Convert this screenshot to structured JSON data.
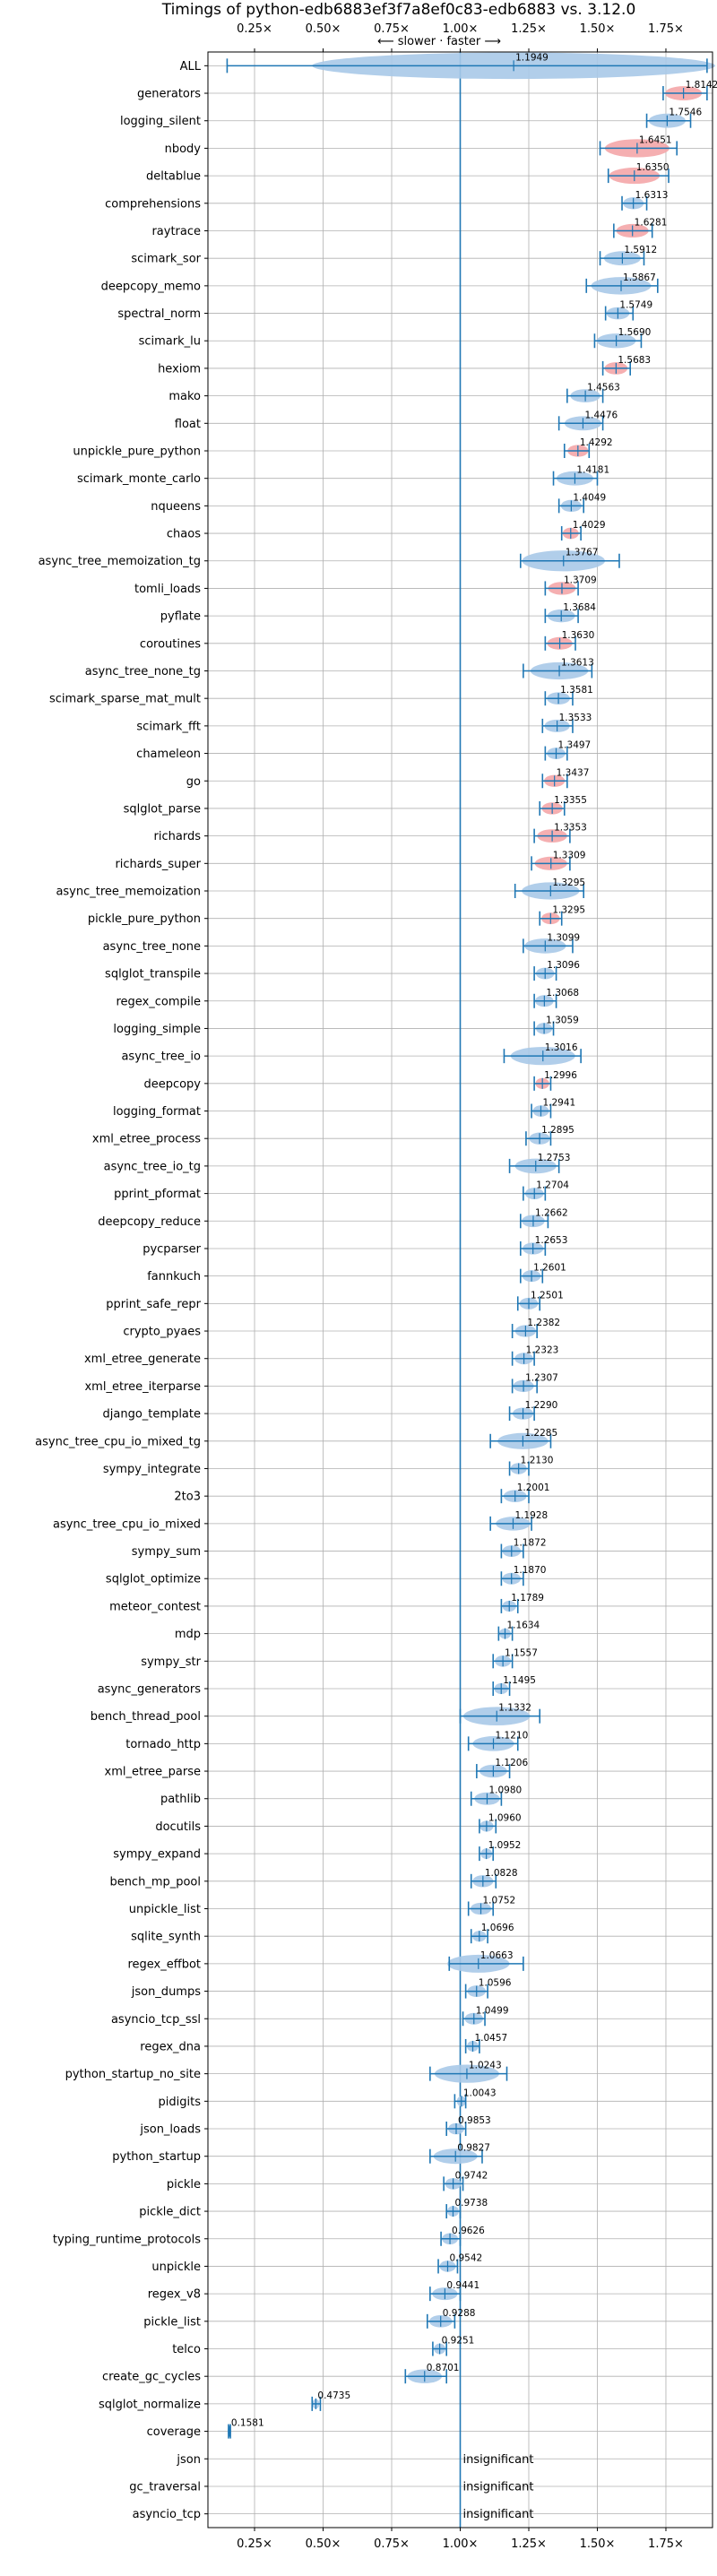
{
  "chart_data": {
    "type": "violin",
    "title": "Timings of python-edb6883ef3f7a8ef0c83-edb6883 vs. 3.12.0",
    "subtitle": "⟵ slower · faster ⟶",
    "xlim": [
      0.08,
      1.92
    ],
    "x_ticks": [
      0.25,
      0.5,
      0.75,
      1.0,
      1.25,
      1.5,
      1.75
    ],
    "x_tick_labels": [
      "0.25×",
      "0.50×",
      "0.75×",
      "1.00×",
      "1.25×",
      "1.50×",
      "1.75×"
    ],
    "reference_line": 1.0,
    "grid": true,
    "insignificant_label": "insignificant",
    "colors": {
      "faster": "#a9c9e8",
      "slower": "#f4a6a8",
      "whisker": "#1f77b4",
      "grid": "#b0b0b0"
    },
    "benchmarks": [
      {
        "name": "ALL",
        "value": 1.1949,
        "lo": 0.15,
        "hi": 1.9,
        "slower": false
      },
      {
        "name": "generators",
        "value": 1.8142,
        "lo": 1.74,
        "hi": 1.9,
        "slower": true
      },
      {
        "name": "logging_silent",
        "value": 1.7546,
        "lo": 1.68,
        "hi": 1.84,
        "slower": false
      },
      {
        "name": "nbody",
        "value": 1.6451,
        "lo": 1.51,
        "hi": 1.79,
        "slower": true
      },
      {
        "name": "deltablue",
        "value": 1.635,
        "lo": 1.54,
        "hi": 1.76,
        "slower": true
      },
      {
        "name": "comprehensions",
        "value": 1.6313,
        "lo": 1.59,
        "hi": 1.68,
        "slower": false
      },
      {
        "name": "raytrace",
        "value": 1.6281,
        "lo": 1.56,
        "hi": 1.7,
        "slower": true
      },
      {
        "name": "scimark_sor",
        "value": 1.5912,
        "lo": 1.51,
        "hi": 1.67,
        "slower": false
      },
      {
        "name": "deepcopy_memo",
        "value": 1.5867,
        "lo": 1.46,
        "hi": 1.72,
        "slower": false
      },
      {
        "name": "spectral_norm",
        "value": 1.5749,
        "lo": 1.53,
        "hi": 1.63,
        "slower": false
      },
      {
        "name": "scimark_lu",
        "value": 1.569,
        "lo": 1.49,
        "hi": 1.66,
        "slower": false
      },
      {
        "name": "hexiom",
        "value": 1.5683,
        "lo": 1.52,
        "hi": 1.62,
        "slower": true
      },
      {
        "name": "mako",
        "value": 1.4563,
        "lo": 1.39,
        "hi": 1.52,
        "slower": false
      },
      {
        "name": "float",
        "value": 1.4476,
        "lo": 1.36,
        "hi": 1.52,
        "slower": false
      },
      {
        "name": "unpickle_pure_python",
        "value": 1.4292,
        "lo": 1.38,
        "hi": 1.47,
        "slower": true
      },
      {
        "name": "scimark_monte_carlo",
        "value": 1.4181,
        "lo": 1.34,
        "hi": 1.5,
        "slower": false
      },
      {
        "name": "nqueens",
        "value": 1.4049,
        "lo": 1.36,
        "hi": 1.45,
        "slower": false
      },
      {
        "name": "chaos",
        "value": 1.4029,
        "lo": 1.37,
        "hi": 1.44,
        "slower": true
      },
      {
        "name": "async_tree_memoization_tg",
        "value": 1.3767,
        "lo": 1.22,
        "hi": 1.58,
        "slower": false
      },
      {
        "name": "tomli_loads",
        "value": 1.3709,
        "lo": 1.31,
        "hi": 1.43,
        "slower": true
      },
      {
        "name": "pyflate",
        "value": 1.3684,
        "lo": 1.31,
        "hi": 1.43,
        "slower": false
      },
      {
        "name": "coroutines",
        "value": 1.363,
        "lo": 1.31,
        "hi": 1.42,
        "slower": true
      },
      {
        "name": "async_tree_none_tg",
        "value": 1.3613,
        "lo": 1.23,
        "hi": 1.48,
        "slower": false
      },
      {
        "name": "scimark_sparse_mat_mult",
        "value": 1.3581,
        "lo": 1.31,
        "hi": 1.41,
        "slower": false
      },
      {
        "name": "scimark_fft",
        "value": 1.3533,
        "lo": 1.3,
        "hi": 1.41,
        "slower": false
      },
      {
        "name": "chameleon",
        "value": 1.3497,
        "lo": 1.31,
        "hi": 1.39,
        "slower": false
      },
      {
        "name": "go",
        "value": 1.3437,
        "lo": 1.3,
        "hi": 1.39,
        "slower": true
      },
      {
        "name": "sqlglot_parse",
        "value": 1.3355,
        "lo": 1.29,
        "hi": 1.38,
        "slower": true
      },
      {
        "name": "richards",
        "value": 1.3353,
        "lo": 1.27,
        "hi": 1.4,
        "slower": true
      },
      {
        "name": "richards_super",
        "value": 1.3309,
        "lo": 1.26,
        "hi": 1.4,
        "slower": true
      },
      {
        "name": "async_tree_memoization",
        "value": 1.3295,
        "lo": 1.2,
        "hi": 1.45,
        "slower": false
      },
      {
        "name": "pickle_pure_python",
        "value": 1.3295,
        "lo": 1.29,
        "hi": 1.37,
        "slower": true
      },
      {
        "name": "async_tree_none",
        "value": 1.3099,
        "lo": 1.23,
        "hi": 1.41,
        "slower": false
      },
      {
        "name": "sqlglot_transpile",
        "value": 1.3096,
        "lo": 1.27,
        "hi": 1.35,
        "slower": false
      },
      {
        "name": "regex_compile",
        "value": 1.3068,
        "lo": 1.27,
        "hi": 1.35,
        "slower": false
      },
      {
        "name": "logging_simple",
        "value": 1.3059,
        "lo": 1.27,
        "hi": 1.34,
        "slower": false
      },
      {
        "name": "async_tree_io",
        "value": 1.3016,
        "lo": 1.16,
        "hi": 1.44,
        "slower": false
      },
      {
        "name": "deepcopy",
        "value": 1.2996,
        "lo": 1.27,
        "hi": 1.33,
        "slower": true
      },
      {
        "name": "logging_format",
        "value": 1.2941,
        "lo": 1.26,
        "hi": 1.33,
        "slower": false
      },
      {
        "name": "xml_etree_process",
        "value": 1.2895,
        "lo": 1.24,
        "hi": 1.33,
        "slower": false
      },
      {
        "name": "async_tree_io_tg",
        "value": 1.2753,
        "lo": 1.18,
        "hi": 1.36,
        "slower": false
      },
      {
        "name": "pprint_pformat",
        "value": 1.2704,
        "lo": 1.23,
        "hi": 1.31,
        "slower": false
      },
      {
        "name": "deepcopy_reduce",
        "value": 1.2662,
        "lo": 1.22,
        "hi": 1.32,
        "slower": false
      },
      {
        "name": "pycparser",
        "value": 1.2653,
        "lo": 1.22,
        "hi": 1.31,
        "slower": false
      },
      {
        "name": "fannkuch",
        "value": 1.2601,
        "lo": 1.22,
        "hi": 1.3,
        "slower": false
      },
      {
        "name": "pprint_safe_repr",
        "value": 1.2501,
        "lo": 1.21,
        "hi": 1.29,
        "slower": false
      },
      {
        "name": "crypto_pyaes",
        "value": 1.2382,
        "lo": 1.19,
        "hi": 1.28,
        "slower": false
      },
      {
        "name": "xml_etree_generate",
        "value": 1.2323,
        "lo": 1.19,
        "hi": 1.27,
        "slower": false
      },
      {
        "name": "xml_etree_iterparse",
        "value": 1.2307,
        "lo": 1.19,
        "hi": 1.28,
        "slower": false
      },
      {
        "name": "django_template",
        "value": 1.229,
        "lo": 1.18,
        "hi": 1.27,
        "slower": false
      },
      {
        "name": "async_tree_cpu_io_mixed_tg",
        "value": 1.2285,
        "lo": 1.11,
        "hi": 1.33,
        "slower": false
      },
      {
        "name": "sympy_integrate",
        "value": 1.213,
        "lo": 1.18,
        "hi": 1.25,
        "slower": false
      },
      {
        "name": "2to3",
        "value": 1.2001,
        "lo": 1.15,
        "hi": 1.25,
        "slower": false
      },
      {
        "name": "async_tree_cpu_io_mixed",
        "value": 1.1928,
        "lo": 1.11,
        "hi": 1.26,
        "slower": false
      },
      {
        "name": "sympy_sum",
        "value": 1.1872,
        "lo": 1.15,
        "hi": 1.23,
        "slower": false
      },
      {
        "name": "sqlglot_optimize",
        "value": 1.187,
        "lo": 1.15,
        "hi": 1.23,
        "slower": false
      },
      {
        "name": "meteor_contest",
        "value": 1.1789,
        "lo": 1.15,
        "hi": 1.21,
        "slower": false
      },
      {
        "name": "mdp",
        "value": 1.1634,
        "lo": 1.14,
        "hi": 1.19,
        "slower": false
      },
      {
        "name": "sympy_str",
        "value": 1.1557,
        "lo": 1.12,
        "hi": 1.19,
        "slower": false
      },
      {
        "name": "async_generators",
        "value": 1.1495,
        "lo": 1.12,
        "hi": 1.18,
        "slower": false
      },
      {
        "name": "bench_thread_pool",
        "value": 1.1332,
        "lo": 1.0,
        "hi": 1.29,
        "slower": false
      },
      {
        "name": "tornado_http",
        "value": 1.121,
        "lo": 1.03,
        "hi": 1.21,
        "slower": false
      },
      {
        "name": "xml_etree_parse",
        "value": 1.1206,
        "lo": 1.06,
        "hi": 1.18,
        "slower": false
      },
      {
        "name": "pathlib",
        "value": 1.098,
        "lo": 1.04,
        "hi": 1.15,
        "slower": false
      },
      {
        "name": "docutils",
        "value": 1.096,
        "lo": 1.07,
        "hi": 1.13,
        "slower": false
      },
      {
        "name": "sympy_expand",
        "value": 1.0952,
        "lo": 1.07,
        "hi": 1.12,
        "slower": false
      },
      {
        "name": "bench_mp_pool",
        "value": 1.0828,
        "lo": 1.04,
        "hi": 1.13,
        "slower": false
      },
      {
        "name": "unpickle_list",
        "value": 1.0752,
        "lo": 1.03,
        "hi": 1.12,
        "slower": false
      },
      {
        "name": "sqlite_synth",
        "value": 1.0696,
        "lo": 1.04,
        "hi": 1.1,
        "slower": false
      },
      {
        "name": "regex_effbot",
        "value": 1.0663,
        "lo": 0.96,
        "hi": 1.23,
        "slower": false
      },
      {
        "name": "json_dumps",
        "value": 1.0596,
        "lo": 1.02,
        "hi": 1.1,
        "slower": false
      },
      {
        "name": "asyncio_tcp_ssl",
        "value": 1.0499,
        "lo": 1.01,
        "hi": 1.09,
        "slower": false
      },
      {
        "name": "regex_dna",
        "value": 1.0457,
        "lo": 1.02,
        "hi": 1.07,
        "slower": false
      },
      {
        "name": "python_startup_no_site",
        "value": 1.0243,
        "lo": 0.89,
        "hi": 1.17,
        "slower": false
      },
      {
        "name": "pidigits",
        "value": 1.0043,
        "lo": 0.98,
        "hi": 1.02,
        "slower": false
      },
      {
        "name": "json_loads",
        "value": 0.9853,
        "lo": 0.95,
        "hi": 1.02,
        "slower": false
      },
      {
        "name": "python_startup",
        "value": 0.9827,
        "lo": 0.89,
        "hi": 1.08,
        "slower": false
      },
      {
        "name": "pickle",
        "value": 0.9742,
        "lo": 0.94,
        "hi": 1.01,
        "slower": false
      },
      {
        "name": "pickle_dict",
        "value": 0.9738,
        "lo": 0.95,
        "hi": 1.0,
        "slower": false
      },
      {
        "name": "typing_runtime_protocols",
        "value": 0.9626,
        "lo": 0.93,
        "hi": 1.0,
        "slower": false
      },
      {
        "name": "unpickle",
        "value": 0.9542,
        "lo": 0.92,
        "hi": 0.99,
        "slower": false
      },
      {
        "name": "regex_v8",
        "value": 0.9441,
        "lo": 0.89,
        "hi": 1.0,
        "slower": false
      },
      {
        "name": "pickle_list",
        "value": 0.9288,
        "lo": 0.88,
        "hi": 0.98,
        "slower": false
      },
      {
        "name": "telco",
        "value": 0.9251,
        "lo": 0.9,
        "hi": 0.95,
        "slower": false
      },
      {
        "name": "create_gc_cycles",
        "value": 0.8701,
        "lo": 0.8,
        "hi": 0.95,
        "slower": false
      },
      {
        "name": "sqlglot_normalize",
        "value": 0.4735,
        "lo": 0.46,
        "hi": 0.49,
        "slower": false
      },
      {
        "name": "coverage",
        "value": 0.1581,
        "lo": 0.155,
        "hi": 0.162,
        "slower": false
      },
      {
        "name": "json",
        "value": null,
        "insignificant": true
      },
      {
        "name": "gc_traversal",
        "value": null,
        "insignificant": true
      },
      {
        "name": "asyncio_tcp",
        "value": null,
        "insignificant": true
      }
    ]
  }
}
